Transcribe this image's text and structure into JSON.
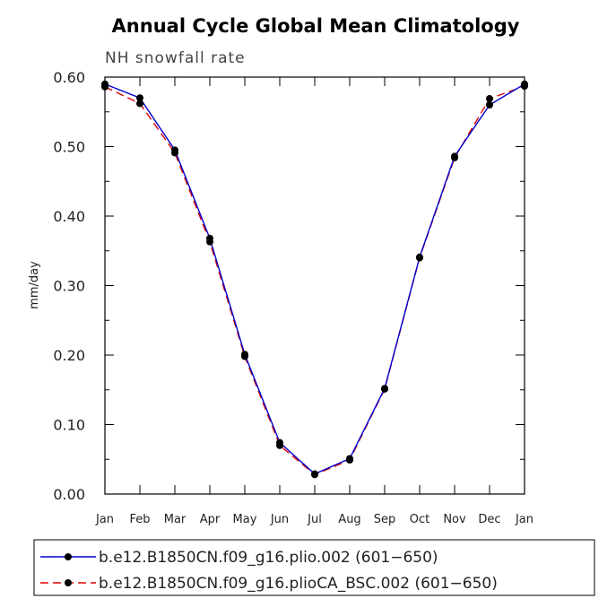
{
  "chart_data": {
    "type": "line",
    "title": "Annual Cycle Global Mean Climatology",
    "subtitle": "NH snowfall rate",
    "xlabel": "",
    "ylabel": "mm/day",
    "categories": [
      "Jan",
      "Feb",
      "Mar",
      "Apr",
      "May",
      "Jun",
      "Jul",
      "Aug",
      "Sep",
      "Oct",
      "Nov",
      "Dec",
      "Jan"
    ],
    "ylim": [
      0.0,
      0.6
    ],
    "yticks": [
      "0.00",
      "0.10",
      "0.20",
      "0.30",
      "0.40",
      "0.50",
      "0.60"
    ],
    "grid": false,
    "legend_position": "bottom",
    "series": [
      {
        "name": "b.e12.B1850CN.f09_g16.plio.002 (601−650)",
        "color": "#0000cc",
        "dash": "solid",
        "marker": "filled-circle",
        "values": [
          0.59,
          0.57,
          0.495,
          0.368,
          0.201,
          0.074,
          0.029,
          0.051,
          0.152,
          0.341,
          0.486,
          0.56,
          0.59
        ]
      },
      {
        "name": "b.e12.B1850CN.f09_g16.plioCA_BSC.002 (601−650)",
        "color": "#e00000",
        "dash": "dashed",
        "marker": "filled-circle",
        "values": [
          0.586,
          0.562,
          0.491,
          0.363,
          0.198,
          0.07,
          0.028,
          0.049,
          0.151,
          0.34,
          0.484,
          0.569,
          0.587
        ]
      }
    ]
  }
}
